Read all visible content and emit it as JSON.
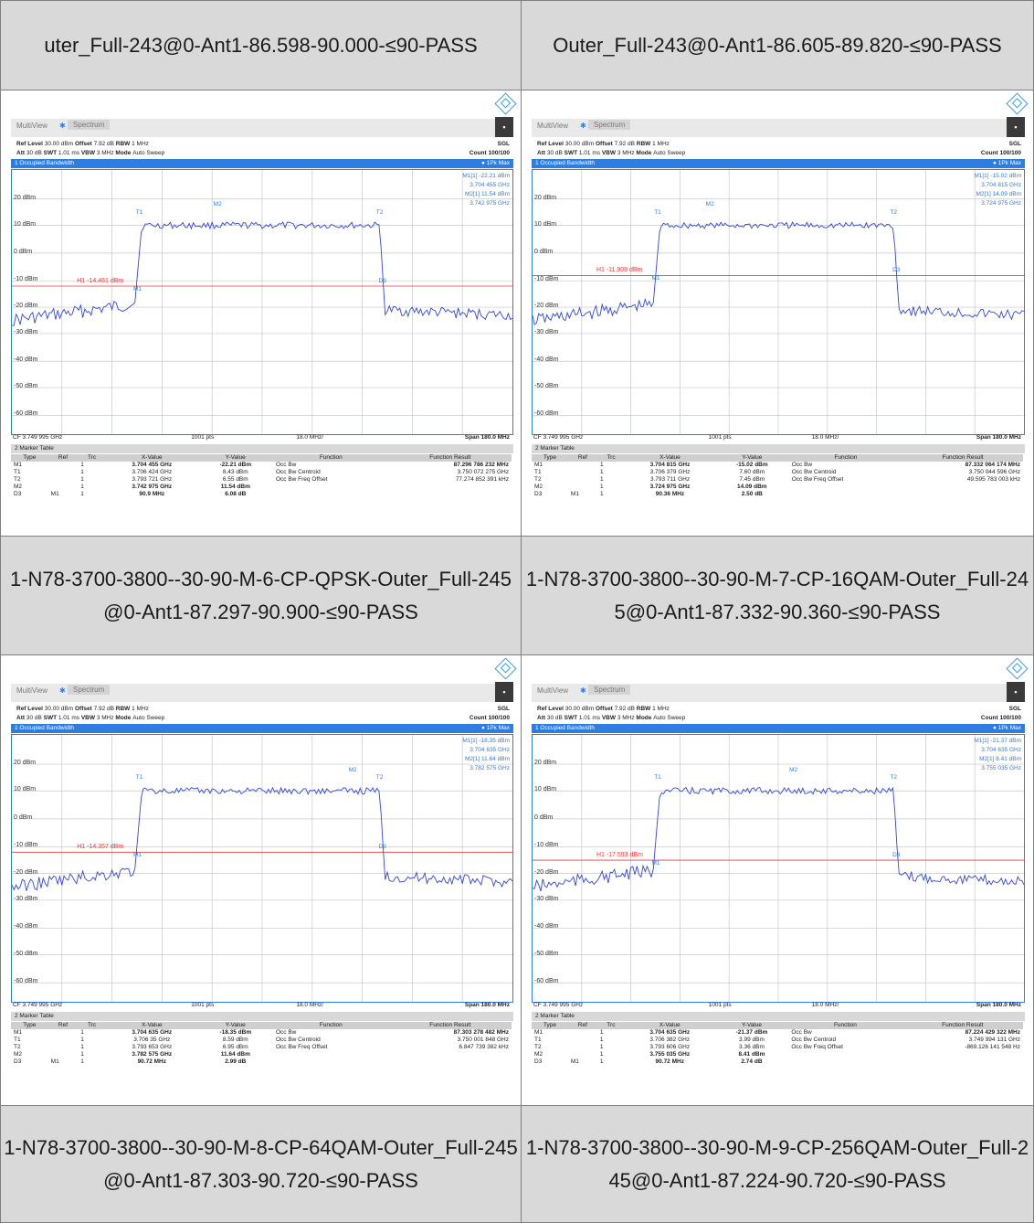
{
  "colors": {
    "accent": "#2f7de0",
    "threshold": "#e53b3b",
    "header_bg": "#d9d9d9"
  },
  "ui": {
    "tab_multiview": "MultiView",
    "tab_spectrum": "Spectrum",
    "ref_level_label": "Ref Level",
    "ref_level": "30.00 dBm",
    "offset_label": "Offset",
    "offset": "7.92 dB",
    "rbw_label": "RBW",
    "rbw": "1 MHz",
    "att_label": "Att",
    "att": "30 dB",
    "swt_label": "SWT",
    "swt": "1.01 ms",
    "vbw_label": "VBW",
    "vbw": "3 MHz",
    "mode_label": "Mode",
    "mode": "Auto Sweep",
    "sgl": "SGL",
    "count": "Count 100/100",
    "panel1": "1 Occupied Bandwidth",
    "trace": "1Pk Max",
    "cf": "CF 3.749 995 GHz",
    "pts": "1001 pts",
    "div": "18.0 MHz/",
    "span": "Span 180.0 MHz",
    "panel2": "2 Marker Table",
    "y_labels": [
      "20 dBm",
      "10 dBm",
      "0 dBm",
      "-10 dBm",
      "-20 dBm",
      "-30 dBm",
      "-40 dBm",
      "-50 dBm",
      "-60 dBm"
    ],
    "cols": [
      "Type",
      "Ref",
      "Trc",
      "X-Value",
      "Y-Value",
      "Function",
      "Function Result"
    ],
    "functions": [
      "Occ Bw",
      "Occ Bw Centroid",
      "Occ Bw Freq Offset"
    ]
  },
  "headers": [
    "uter_Full-243@0-Ant1-86.598-90.000-≤90-PASS",
    "Outer_Full-243@0-Ant1-86.605-89.820-≤90-PASS",
    "1-N78-3700-3800--30-90-M-6-CP-QPSK-Outer_Full-245@0-Ant1-87.297-90.900-≤90-PASS",
    "1-N78-3700-3800--30-90-M-7-CP-16QAM-Outer_Full-245@0-Ant1-87.332-90.360-≤90-PASS",
    "1-N78-3700-3800--30-90-M-8-CP-64QAM-Outer_Full-245@0-Ant1-87.303-90.720-≤90-PASS",
    "1-N78-3700-3800--30-90-M-9-CP-256QAM-Outer_Full-245@0-Ant1-87.224-90.720-≤90-PASS"
  ],
  "shots": [
    {
      "h1": "H1 -14.461 dBm",
      "m1_read": [
        "M1[1]",
        "-22.21 dBm",
        "3.704 455 GHz"
      ],
      "m2_read": [
        "M2[1]",
        "11.54 dBm",
        "3.742 975 GHz"
      ],
      "rows": [
        [
          "M1",
          "",
          "1",
          "3.704 455 GHz",
          "-22.21 dBm",
          "Occ Bw",
          "87.296 786 232 MHz"
        ],
        [
          "T1",
          "",
          "1",
          "3.706 424 GHz",
          "8.43 dBm",
          "Occ Bw Centroid",
          "3.750 072 275 GHz"
        ],
        [
          "T2",
          "",
          "1",
          "3.793 721 GHz",
          "6.55 dBm",
          "Occ Bw Freq Offset",
          "77.274 852 391 kHz"
        ],
        [
          "M2",
          "",
          "1",
          "3.742 975 GHz",
          "11.54 dBm",
          "",
          ""
        ],
        [
          "D3",
          "M1",
          "1",
          "90.9 MHz",
          "6.08 dB",
          "",
          ""
        ]
      ]
    },
    {
      "h1": "H1 -11.909 dBm",
      "m1_read": [
        "M1[1]",
        "-15.02 dBm",
        "3.704 815 GHz"
      ],
      "m2_read": [
        "M2[1]",
        "14.09 dBm",
        "3.724 975 GHz"
      ],
      "rows": [
        [
          "M1",
          "",
          "1",
          "3.704 815 GHz",
          "-15.02 dBm",
          "Occ Bw",
          "87.332 064 174 MHz"
        ],
        [
          "T1",
          "",
          "1",
          "3.706 379 GHz",
          "7.60 dBm",
          "Occ Bw Centroid",
          "3.750 044 596 GHz"
        ],
        [
          "T2",
          "",
          "1",
          "3.793 711 GHz",
          "7.45 dBm",
          "Occ Bw Freq Offset",
          "49.595 783 003 kHz"
        ],
        [
          "M2",
          "",
          "1",
          "3.724 975 GHz",
          "14.09 dBm",
          "",
          ""
        ],
        [
          "D3",
          "M1",
          "1",
          "90.36 MHz",
          "2.50 dB",
          "",
          ""
        ]
      ]
    },
    {
      "h1": "H1 -14.357 dBm",
      "m1_read": [
        "M1[1]",
        "-18.35 dBm",
        "3.704 635 GHz"
      ],
      "m2_read": [
        "M2[1]",
        "11.64 dBm",
        "3.782 575 GHz"
      ],
      "rows": [
        [
          "M1",
          "",
          "1",
          "3.704 635 GHz",
          "-18.35 dBm",
          "Occ Bw",
          "87.303 278 482 MHz"
        ],
        [
          "T1",
          "",
          "1",
          "3.706 35 GHz",
          "8.59 dBm",
          "Occ Bw Centroid",
          "3.750 001 848 GHz"
        ],
        [
          "T2",
          "",
          "1",
          "3.793 653 GHz",
          "6.95 dBm",
          "Occ Bw Freq Offset",
          "6.847 739 382 kHz"
        ],
        [
          "M2",
          "",
          "1",
          "3.782 575 GHz",
          "11.64 dBm",
          "",
          ""
        ],
        [
          "D3",
          "M1",
          "1",
          "90.72 MHz",
          "2.99 dB",
          "",
          ""
        ]
      ]
    },
    {
      "h1": "H1 -17.593 dBm",
      "m1_read": [
        "M1[1]",
        "-21.37 dBm",
        "3.704 635 GHz"
      ],
      "m2_read": [
        "M2[1]",
        "8.41 dBm",
        "3.755 035 GHz"
      ],
      "rows": [
        [
          "M1",
          "",
          "1",
          "3.704 635 GHz",
          "-21.37 dBm",
          "Occ Bw",
          "87.224 429 322 MHz"
        ],
        [
          "T1",
          "",
          "1",
          "3.706 382 GHz",
          "3.99 dBm",
          "Occ Bw Centroid",
          "3.749 994 131 GHz"
        ],
        [
          "T2",
          "",
          "1",
          "3.793 606 GHz",
          "3.36 dBm",
          "Occ Bw Freq Offset",
          "-869.126 141 548 Hz"
        ],
        [
          "M2",
          "",
          "1",
          "3.755 035 GHz",
          "8.41 dBm",
          "",
          ""
        ],
        [
          "D3",
          "M1",
          "1",
          "90.72 MHz",
          "2.74 dB",
          "",
          ""
        ]
      ]
    }
  ]
}
